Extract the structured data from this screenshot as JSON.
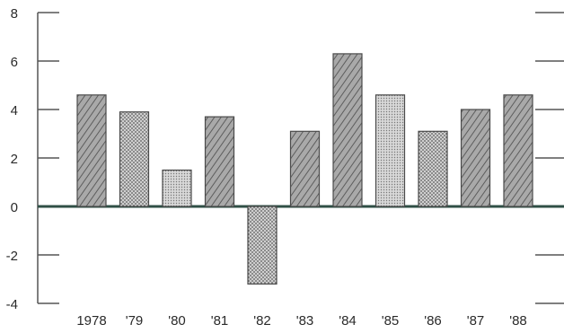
{
  "chart_data": {
    "type": "bar",
    "title": "",
    "xlabel": "",
    "ylabel": "",
    "categories": [
      "1978",
      "'79",
      "'80",
      "'81",
      "'82",
      "'83",
      "'84",
      "'85",
      "'86",
      "'87",
      "'88"
    ],
    "values": [
      4.6,
      3.9,
      1.5,
      3.7,
      -3.2,
      3.1,
      6.3,
      4.6,
      3.1,
      4.0,
      4.6
    ],
    "ylim": [
      -4,
      8
    ],
    "yticks": [
      8,
      6,
      4,
      2,
      0,
      -2,
      -4
    ],
    "ytick_labels": [
      "8",
      "6",
      "4",
      "2",
      "0",
      "-2",
      "-4"
    ],
    "grid": false,
    "legend": "none",
    "colors": {
      "bar_fill": "#b4b4b4",
      "bar_stroke": "#4a4a4a",
      "zero_line": "#2f4f46",
      "axis": "#555555",
      "text": "#2a2a2a"
    }
  }
}
